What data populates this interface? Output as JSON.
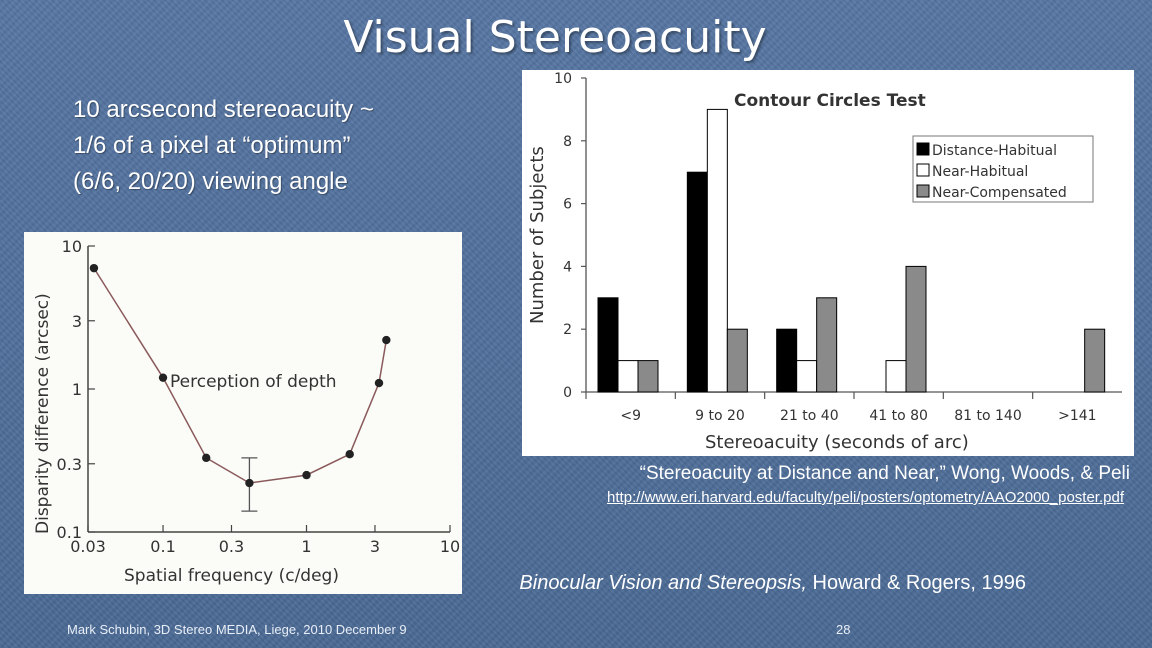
{
  "slide": {
    "title": "Visual Stereoacuity",
    "bullet_lines": [
      "10 arcsecond stereoacuity ~",
      "1/6 of a pixel at “optimum”",
      "(6/6, 20/20) viewing angle"
    ],
    "citation_wong": "“Stereoacuity at Distance and Near,” Wong, Woods, & Peli",
    "citation_link": "http://www.eri.harvard.edu/faculty/peli/posters/optometry/AAO2000_poster.pdf",
    "citation_howard_title": "Binocular Vision and Stereopsis,",
    "citation_howard_rest": " Howard & Rogers, 1996",
    "footer": "Mark Schubin, 3D Stereo MEDIA, Liege, 2010 December 9",
    "page_number": "28",
    "colors": {
      "text": "#ffffff",
      "background": "#4f6e9a"
    }
  },
  "chart_data": [
    {
      "type": "line",
      "title": "",
      "annotation": "Perception of depth",
      "xlabel": "Spatial frequency (c/deg)",
      "ylabel": "Disparity difference (arcsec)",
      "xscale": "log",
      "yscale": "log",
      "xlim": [
        0.03,
        10
      ],
      "ylim": [
        0.1,
        10
      ],
      "xticks": [
        0.03,
        0.1,
        0.3,
        1,
        3,
        10
      ],
      "xtick_labels": [
        "0.03",
        "0.1",
        "0.3",
        "1",
        "3",
        "10"
      ],
      "yticks": [
        0.1,
        0.3,
        1,
        3,
        10
      ],
      "ytick_labels": [
        "0.1",
        "0.3",
        "1",
        "3",
        "10"
      ],
      "x": [
        0.033,
        0.1,
        0.2,
        0.4,
        1.0,
        2.0,
        3.2,
        3.6
      ],
      "y": [
        7.0,
        1.2,
        0.33,
        0.22,
        0.25,
        0.35,
        1.1,
        2.2
      ],
      "error_bar": {
        "x": 0.4,
        "low": 0.14,
        "high": 0.33
      }
    },
    {
      "type": "bar",
      "title": "Contour Circles Test",
      "xlabel": "Stereoacuity (seconds of arc)",
      "ylabel": "Number of Subjects",
      "ylim": [
        0,
        10
      ],
      "yticks": [
        0,
        2,
        4,
        6,
        8,
        10
      ],
      "categories": [
        "<9",
        "9  to 20",
        "21 to 40",
        "41 to 80",
        "81 to 140",
        ">141"
      ],
      "series": [
        {
          "name": "Distance-Habitual",
          "color": "#000000",
          "values": [
            3,
            7,
            2,
            0,
            0,
            0
          ]
        },
        {
          "name": "Near-Habitual",
          "color": "#ffffff",
          "values": [
            1,
            9,
            1,
            1,
            0,
            0
          ]
        },
        {
          "name": "Near-Compensated",
          "color": "#8a8a8a",
          "values": [
            1,
            2,
            3,
            4,
            0,
            2
          ]
        }
      ],
      "legend": "top-right"
    }
  ]
}
